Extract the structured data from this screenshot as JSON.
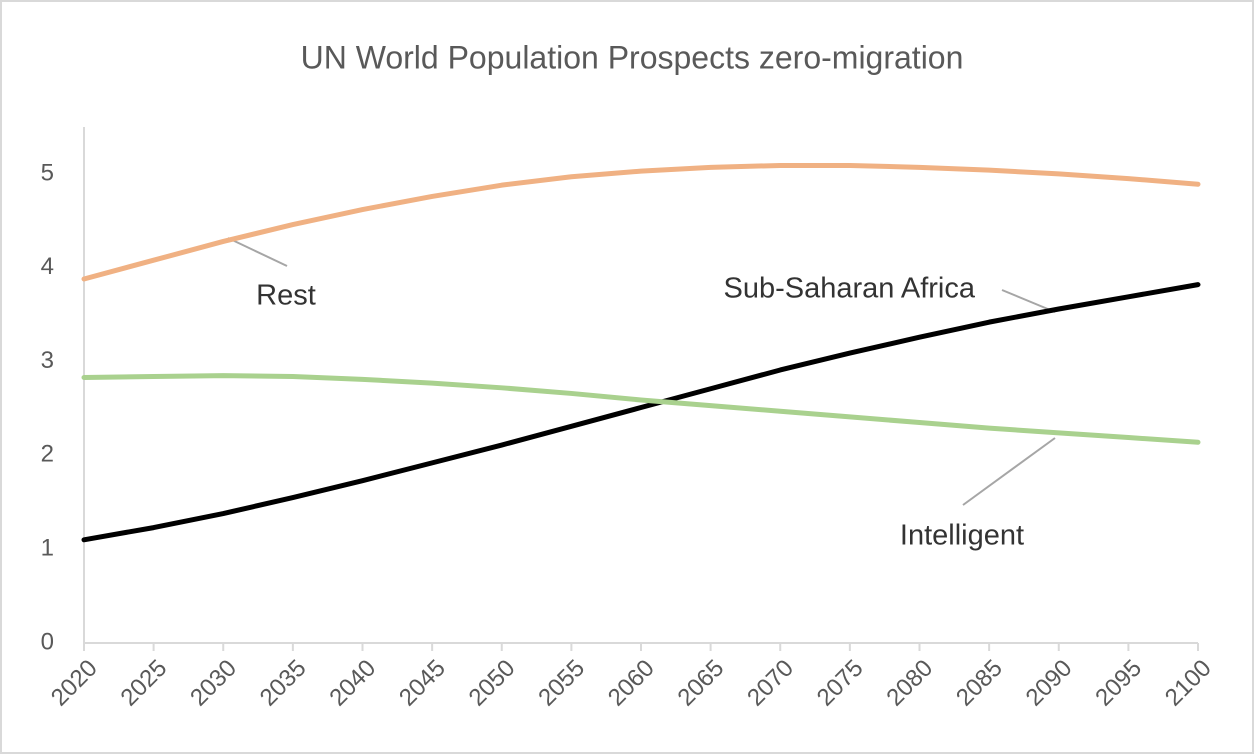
{
  "chart_data": {
    "type": "line",
    "title": "UN World Population Prospects zero-migration",
    "x": [
      2020,
      2025,
      2030,
      2035,
      2040,
      2045,
      2050,
      2055,
      2060,
      2065,
      2070,
      2075,
      2080,
      2085,
      2090,
      2095,
      2100
    ],
    "series": [
      {
        "name": "Rest",
        "color": "#f0b183",
        "values": [
          3.88,
          4.08,
          4.28,
          4.46,
          4.62,
          4.76,
          4.88,
          4.97,
          5.03,
          5.07,
          5.09,
          5.09,
          5.07,
          5.04,
          5.0,
          4.95,
          4.89
        ]
      },
      {
        "name": "Sub-Saharan Africa",
        "color": "#000000",
        "values": [
          1.1,
          1.23,
          1.38,
          1.55,
          1.73,
          1.92,
          2.11,
          2.31,
          2.51,
          2.71,
          2.91,
          3.09,
          3.26,
          3.42,
          3.56,
          3.69,
          3.82
        ]
      },
      {
        "name": "Intelligent",
        "color": "#a9d18e",
        "values": [
          2.83,
          2.84,
          2.85,
          2.84,
          2.81,
          2.77,
          2.72,
          2.66,
          2.59,
          2.53,
          2.47,
          2.41,
          2.35,
          2.29,
          2.24,
          2.19,
          2.14
        ]
      }
    ],
    "xlim": [
      2020,
      2100
    ],
    "xticks": [
      2020,
      2025,
      2030,
      2035,
      2040,
      2045,
      2050,
      2055,
      2060,
      2065,
      2070,
      2075,
      2080,
      2085,
      2090,
      2095,
      2100
    ],
    "ylim": [
      0,
      5.5
    ],
    "yticks": [
      0,
      1,
      2,
      3,
      4,
      5
    ]
  }
}
